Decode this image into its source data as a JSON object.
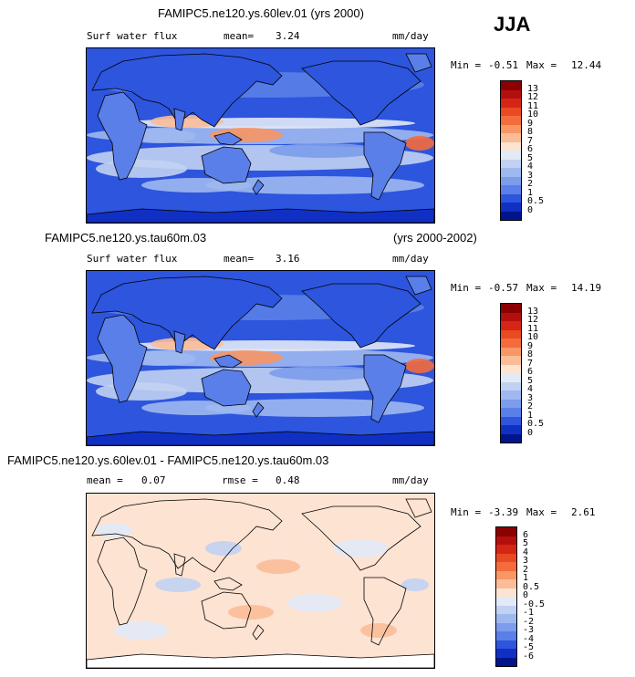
{
  "season": "JJA",
  "panels": [
    {
      "title": "FAMIPC5.ne120.ys.60lev.01 (yrs 2000)",
      "title_extra": "",
      "variable": "Surf water flux",
      "mean_label": "mean=",
      "mean_value": "3.24",
      "rmse_label": "",
      "rmse_value": "",
      "units": "mm/day",
      "min_label": "Min =",
      "min_value": "-0.51",
      "max_label": "Max =",
      "max_value": "12.44",
      "colorbar_labels": [
        "13",
        "12",
        "11",
        "10",
        "9",
        "8",
        "7",
        "6",
        "5",
        "4",
        "3",
        "2",
        "1",
        "0.5",
        "0"
      ],
      "colorbar_colors": [
        "#8b0000",
        "#b40f0f",
        "#d52515",
        "#ea4a22",
        "#f46c3c",
        "#f89664",
        "#fbbc98",
        "#fde3d2",
        "#e2e9f7",
        "#c1d1f2",
        "#9fb8ef",
        "#7c9cec",
        "#5a7fe8",
        "#2d55dd",
        "#1030c4",
        "#00158c"
      ]
    },
    {
      "title": "FAMIPC5.ne120.ys.tau60m.03",
      "title_extra": "(yrs 2000-2002)",
      "variable": "Surf water flux",
      "mean_label": "mean=",
      "mean_value": "3.16",
      "rmse_label": "",
      "rmse_value": "",
      "units": "mm/day",
      "min_label": "Min =",
      "min_value": "-0.57",
      "max_label": "Max =",
      "max_value": "14.19",
      "colorbar_labels": [
        "13",
        "12",
        "11",
        "10",
        "9",
        "8",
        "7",
        "6",
        "5",
        "4",
        "3",
        "2",
        "1",
        "0.5",
        "0"
      ],
      "colorbar_colors": [
        "#8b0000",
        "#b40f0f",
        "#d52515",
        "#ea4a22",
        "#f46c3c",
        "#f89664",
        "#fbbc98",
        "#fde3d2",
        "#e2e9f7",
        "#c1d1f2",
        "#9fb8ef",
        "#7c9cec",
        "#5a7fe8",
        "#2d55dd",
        "#1030c4",
        "#00158c"
      ]
    },
    {
      "title": "FAMIPC5.ne120.ys.60lev.01 - FAMIPC5.ne120.ys.tau60m.03",
      "title_extra": "",
      "variable": "",
      "mean_label": "mean =",
      "mean_value": "0.07",
      "rmse_label": "rmse =",
      "rmse_value": "0.48",
      "units": "mm/day",
      "min_label": "Min =",
      "min_value": "-3.39",
      "max_label": "Max =",
      "max_value": "2.61",
      "colorbar_labels": [
        "6",
        "5",
        "4",
        "3",
        "2",
        "1",
        "0.5",
        "0",
        "-0.5",
        "-1",
        "-2",
        "-3",
        "-4",
        "-5",
        "-6"
      ],
      "colorbar_colors": [
        "#8b0000",
        "#b40f0f",
        "#d52515",
        "#ea4a22",
        "#f46c3c",
        "#f89664",
        "#fbbc98",
        "#fde3d2",
        "#e2e9f7",
        "#c1d1f2",
        "#9fb8ef",
        "#7c9cec",
        "#5a7fe8",
        "#2d55dd",
        "#1030c4",
        "#00158c"
      ]
    }
  ]
}
